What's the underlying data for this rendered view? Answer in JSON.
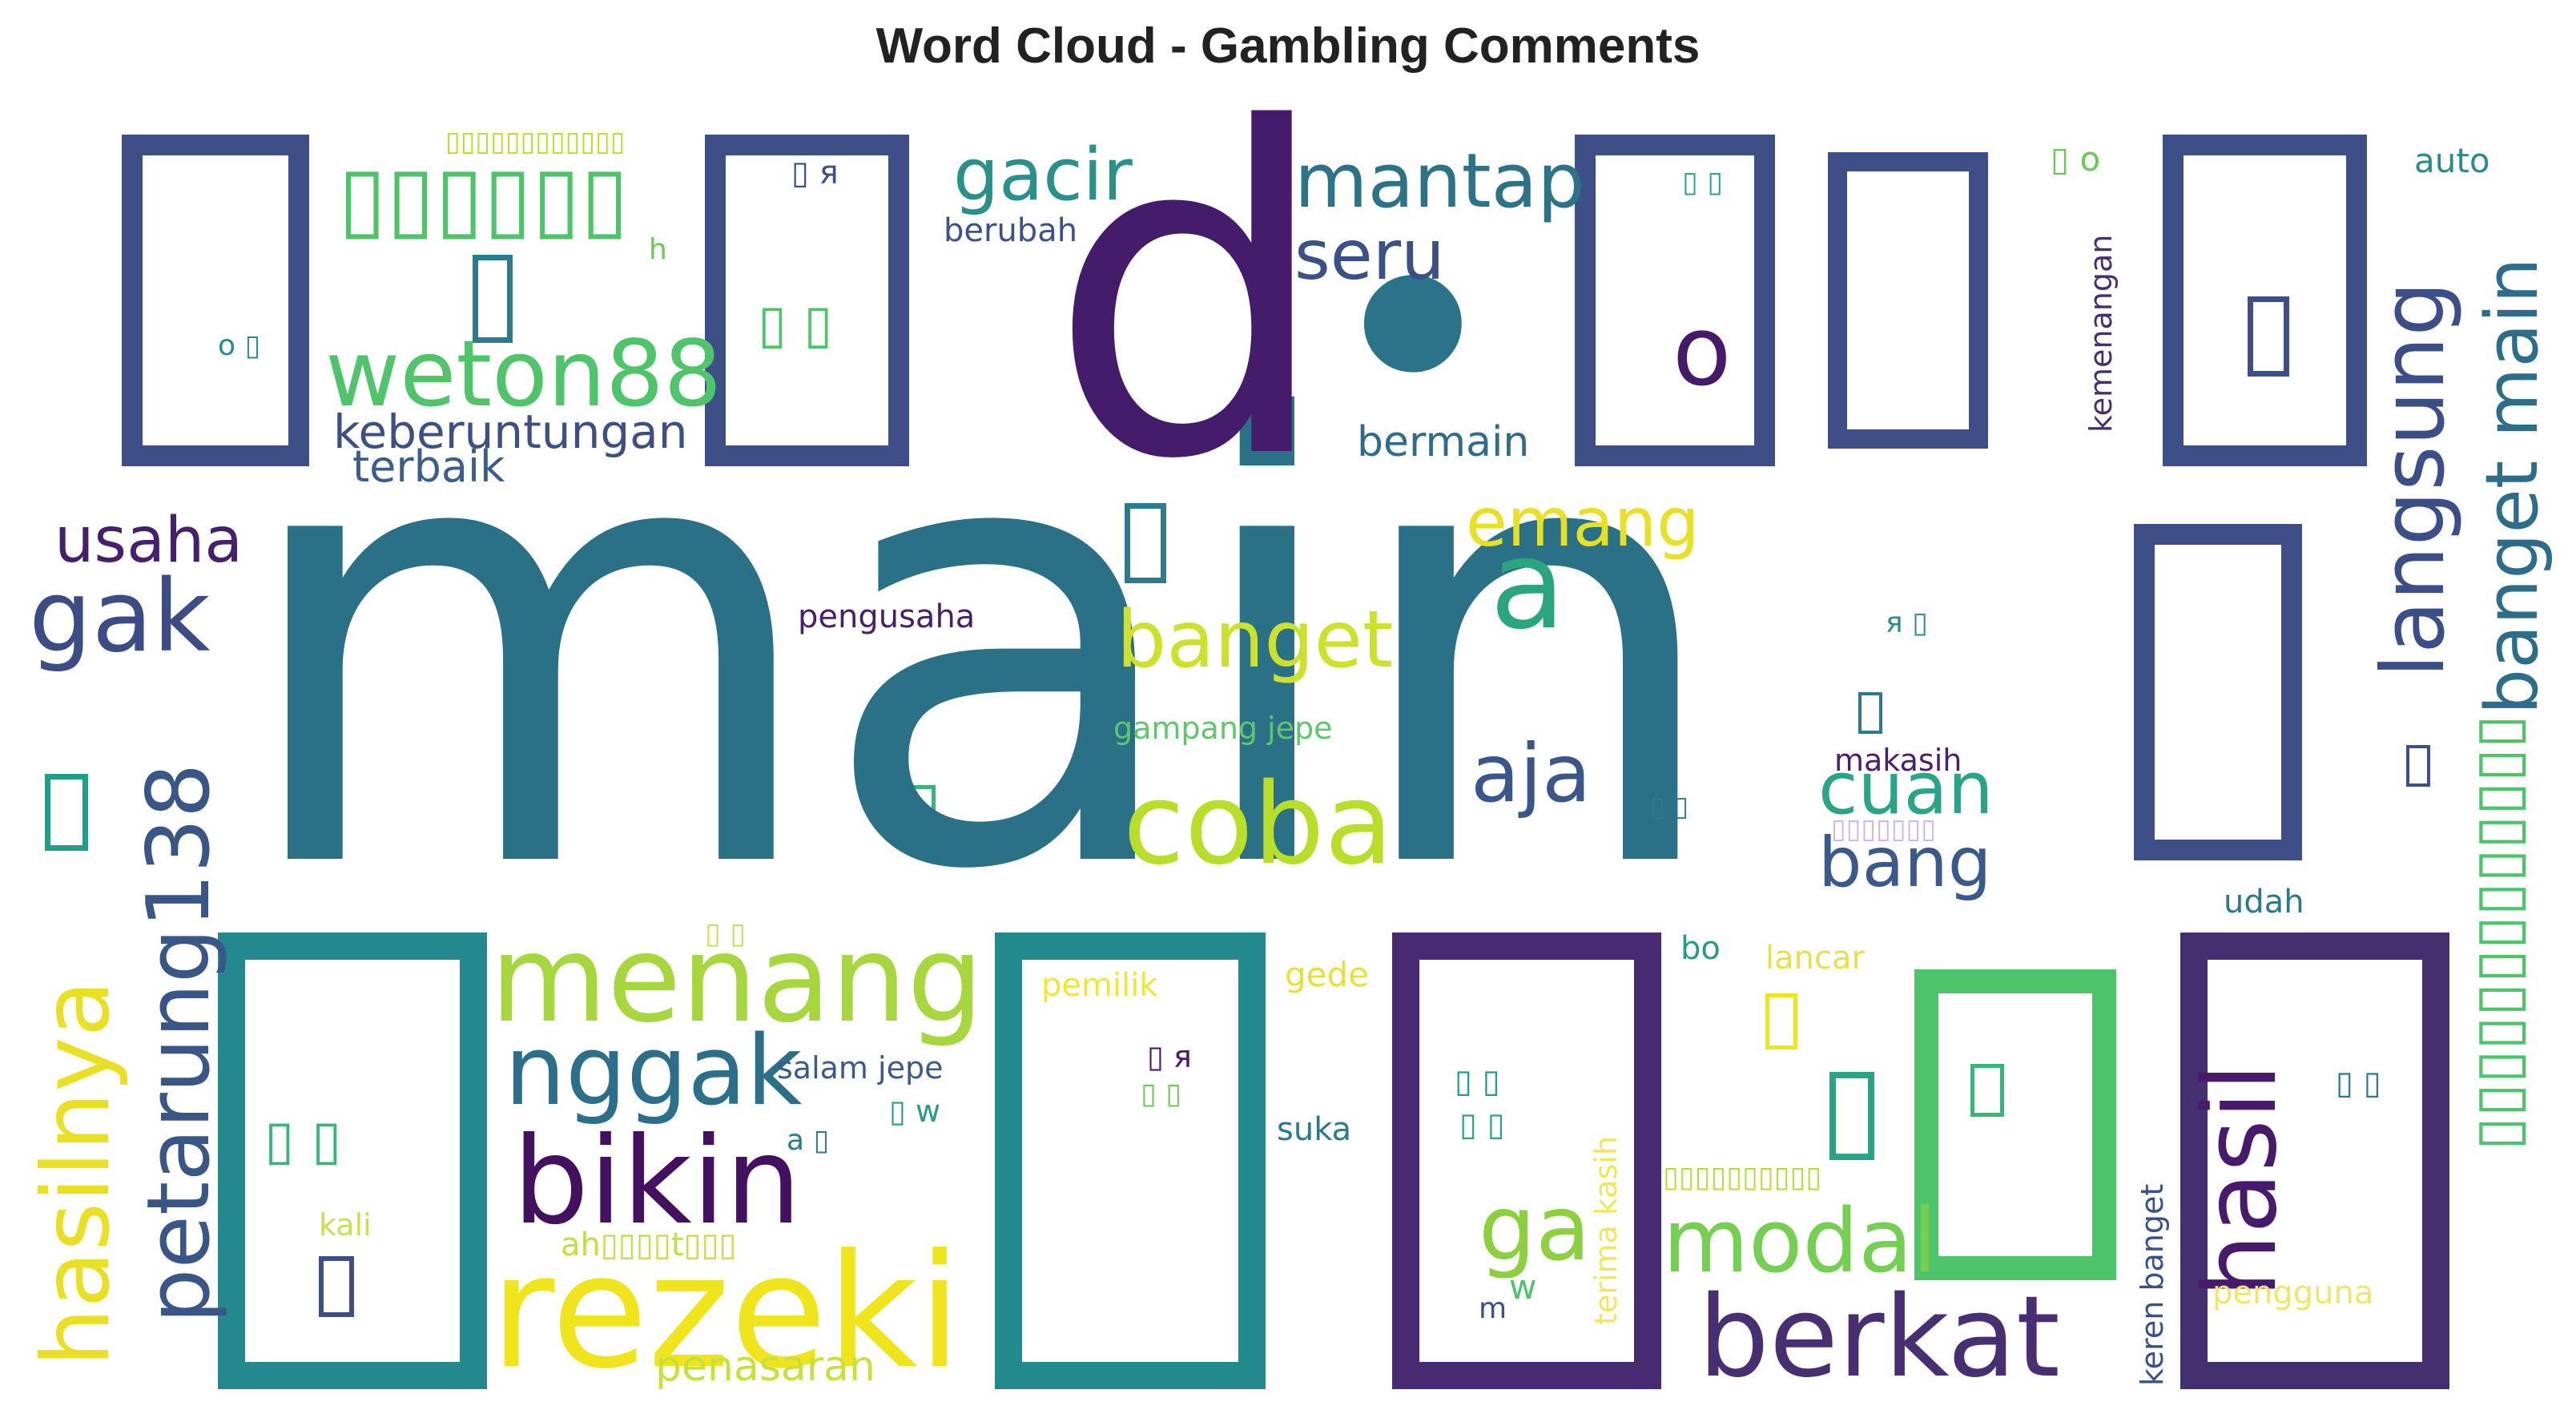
{
  "title": "Word Cloud - Gambling Comments",
  "palette": {
    "dark_purple": "#440154",
    "indigo": "#482878",
    "blue": "#3e4a89",
    "slate_blue": "#31688e",
    "teal": "#26828e",
    "green_teal": "#1f9e89",
    "green": "#35b779",
    "light_green": "#6ece58",
    "lime": "#b5de2b",
    "yellow": "#fde725"
  },
  "words": [
    {
      "text": "main",
      "color": "#2a7086"
    },
    {
      "text": "d",
      "color": "#441c6b"
    },
    {
      "text": "•",
      "color": "#2b7389"
    },
    {
      "text": "rezeki",
      "color": "#f0e41c"
    },
    {
      "text": "bikin",
      "color": "#441060"
    },
    {
      "text": "menang",
      "color": "#a6d73e"
    },
    {
      "text": "coba",
      "color": "#b8de29"
    },
    {
      "text": "berkat",
      "color": "#482f72"
    },
    {
      "text": "nggak",
      "color": "#2c6f8a"
    },
    {
      "text": "modal",
      "color": "#74cf53"
    },
    {
      "text": "ga",
      "color": "#8ccf3f"
    },
    {
      "text": "gak",
      "color": "#3c4d85"
    },
    {
      "text": "weton88",
      "color": "#4fc46a"
    },
    {
      "text": "hasil",
      "color": "#481a6c"
    },
    {
      "text": "a",
      "color": "#2ba57e"
    },
    {
      "text": "petarung138",
      "color": "#3a5686"
    },
    {
      "text": "hasilnya",
      "color": "#e9df23"
    },
    {
      "text": "langsung",
      "color": "#3b4e88"
    },
    {
      "text": "banget main",
      "color": "#2d6d8a"
    },
    {
      "text": "banget",
      "color": "#cbe12b"
    },
    {
      "text": "aja",
      "color": "#3a568a"
    },
    {
      "text": "mantap",
      "color": "#2c7388"
    },
    {
      "text": "seru",
      "color": "#3a5186"
    },
    {
      "text": "gacir",
      "color": "#29918a"
    },
    {
      "text": "o",
      "color": "#451a68"
    },
    {
      "text": "cuan",
      "color": "#2aa487"
    },
    {
      "text": "bang",
      "color": "#3a5a8c"
    },
    {
      "text": "emang",
      "color": "#e8e025"
    },
    {
      "text": "usaha",
      "color": "#46206c"
    },
    {
      "text": "keberuntungan",
      "color": "#3c5086"
    },
    {
      "text": "terbaik",
      "color": "#3a5e8b"
    },
    {
      "text": "bermain",
      "color": "#2f6c8c"
    },
    {
      "text": "penasaran",
      "color": "#c9df3a"
    },
    {
      "text": "pengusaha",
      "color": "#4a1f6a"
    },
    {
      "text": "gampang jepe",
      "color": "#5dc86a"
    },
    {
      "text": "makasih",
      "color": "#4b1d6c"
    },
    {
      "text": "berubah",
      "color": "#3e5088"
    },
    {
      "text": "auto",
      "color": "#2c8a8c"
    },
    {
      "text": "kemenangan",
      "color": "#44306f"
    },
    {
      "text": "udah",
      "color": "#2a7a8e"
    },
    {
      "text": "bo",
      "color": "#289a89"
    },
    {
      "text": "lancar",
      "color": "#e6e04a"
    },
    {
      "text": "pemilik",
      "color": "#f2e53a"
    },
    {
      "text": "gede",
      "color": "#e8e03a"
    },
    {
      "text": "salam jepe",
      "color": "#3a5a88"
    },
    {
      "text": "suka",
      "color": "#2a7a8e"
    },
    {
      "text": "kali",
      "color": "#c8e050"
    },
    {
      "text": "ah▯▯▯▯t▯▯▯",
      "color": "#c2df3e"
    },
    {
      "text": "terima kasih",
      "color": "#f0e85a"
    },
    {
      "text": "keren banget",
      "color": "#3a5188"
    },
    {
      "text": "pengguna",
      "color": "#ede76a"
    },
    {
      "text": "h",
      "color": "#6cc856"
    },
    {
      "text": "m",
      "color": "#3a4f86"
    },
    {
      "text": "w",
      "color": "#4ec46a"
    },
    {
      "text": "a ▯",
      "color": "#2c7a8e"
    },
    {
      "text": "▯ w",
      "color": "#2a9a8c"
    },
    {
      "text": "▯ я",
      "color": "#3e4f88"
    },
    {
      "text": "я ▯",
      "color": "#2c8a8c"
    },
    {
      "text": "▯ o",
      "color": "#6cc856"
    },
    {
      "text": "o ▯",
      "color": "#2c8a8c"
    },
    {
      "text": "▯ ▯",
      "color": "#4ec46a"
    },
    {
      "text": "▯ ▯",
      "color": "#2aa487"
    },
    {
      "text": "▯ ▯",
      "color": "#2c7a8e"
    },
    {
      "text": "▯ ▯",
      "color": "#35b779"
    },
    {
      "text": "▯ ▯",
      "color": "#1f9e89"
    },
    {
      "text": "▯ ▯",
      "color": "#2c7a8e"
    },
    {
      "text": "▯ ▯",
      "color": "#c8e050"
    },
    {
      "text": "▯ ▯",
      "color": "#2aa487"
    },
    {
      "text": "▯ я",
      "color": "#481a6c"
    },
    {
      "text": "▯ ▯",
      "color": "#6cc856"
    },
    {
      "text": "▯▯▯▯▯▯▯▯▯▯▯▯",
      "color": "#b5de2b"
    },
    {
      "text": "▯▯▯▯▯▯▯▯▯▯▯▯▯",
      "color": "#b5de2b"
    },
    {
      "text": "▯▯▯▯▯▯▯",
      "color": "#e0d0ff"
    },
    {
      "text": "▯▯▯▯▯▯",
      "color": "#4ec46a"
    },
    {
      "text": "▯▯▯▯▯▯▯▯▯▯",
      "color": "#4ec46a"
    }
  ]
}
